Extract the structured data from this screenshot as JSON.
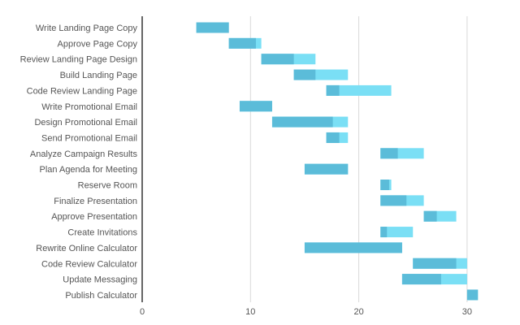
{
  "chart_data": {
    "type": "gantt",
    "title": "",
    "xlabel": "",
    "ylabel": "",
    "xlim": [
      0,
      30
    ],
    "xticks": [
      0,
      10,
      20,
      30
    ],
    "grid": "vertical",
    "legend": "none",
    "colors": {
      "complete": "#5bbcd9",
      "remaining": "#7adff5",
      "gridline": "#d9d9d9",
      "axis": "#333333",
      "label": "#555555"
    },
    "tasks": [
      {
        "name": "Write Landing Page Copy",
        "start": 5,
        "end": 8,
        "complete_to": 8
      },
      {
        "name": "Approve Page Copy",
        "start": 8,
        "end": 11,
        "complete_to": 10.5
      },
      {
        "name": "Review Landing Page Design",
        "start": 11,
        "end": 16,
        "complete_to": 14
      },
      {
        "name": "Build Landing Page",
        "start": 14,
        "end": 19,
        "complete_to": 16
      },
      {
        "name": "Code Review Landing Page",
        "start": 17,
        "end": 23,
        "complete_to": 18.2
      },
      {
        "name": "Write Promotional Email",
        "start": 9,
        "end": 12,
        "complete_to": 12
      },
      {
        "name": "Design Promotional Email",
        "start": 12,
        "end": 19,
        "complete_to": 17.6
      },
      {
        "name": "Send Promotional Email",
        "start": 17,
        "end": 19,
        "complete_to": 18.2
      },
      {
        "name": "Analyze Campaign Results",
        "start": 22,
        "end": 26,
        "complete_to": 23.6
      },
      {
        "name": "Plan Agenda for Meeting",
        "start": 15,
        "end": 19,
        "complete_to": 19
      },
      {
        "name": "Reserve Room",
        "start": 22,
        "end": 23,
        "complete_to": 22.8
      },
      {
        "name": "Finalize Presentation",
        "start": 22,
        "end": 26,
        "complete_to": 24.4
      },
      {
        "name": "Approve Presentation",
        "start": 26,
        "end": 29,
        "complete_to": 27.2
      },
      {
        "name": "Create Invitations",
        "start": 22,
        "end": 25,
        "complete_to": 22.6
      },
      {
        "name": "Rewrite Online Calculator",
        "start": 15,
        "end": 24,
        "complete_to": 24
      },
      {
        "name": "Code Review Calculator",
        "start": 25,
        "end": 30,
        "complete_to": 29
      },
      {
        "name": "Update Messaging",
        "start": 24,
        "end": 30,
        "complete_to": 27.6
      },
      {
        "name": "Publish Calculator",
        "start": 30,
        "end": 31,
        "complete_to": 31
      }
    ]
  }
}
